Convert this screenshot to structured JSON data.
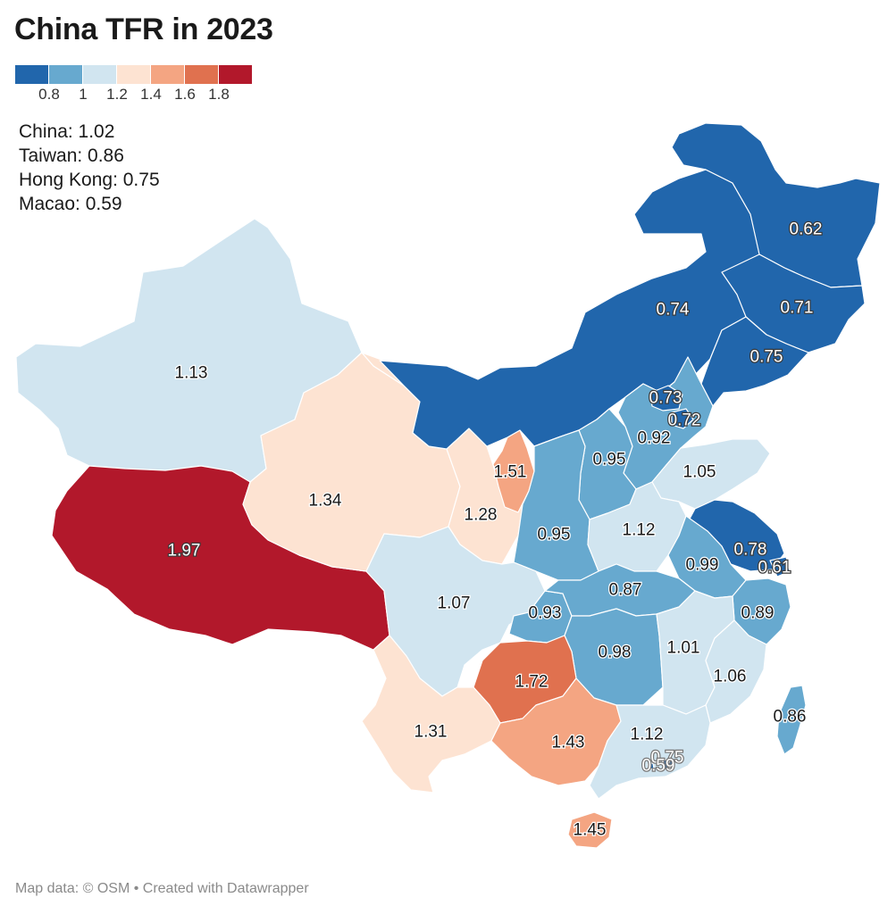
{
  "title": "China TFR in 2023",
  "legend": {
    "colors": [
      "#2166ac",
      "#67a9cf",
      "#d1e5f0",
      "#fde3d2",
      "#f4a582",
      "#e0714f",
      "#b2182b"
    ],
    "ticks": [
      "0.8",
      "1",
      "1.2",
      "1.4",
      "1.6",
      "1.8"
    ]
  },
  "stats": {
    "china": "China: 1.02",
    "taiwan": "Taiwan: 0.86",
    "hongkong": "Hong Kong: 0.75",
    "macao": "Macao: 0.59"
  },
  "regions": {
    "xinjiang": {
      "value": 1.13,
      "label": "1.13"
    },
    "tibet": {
      "value": 1.97,
      "label": "1.97"
    },
    "qinghai": {
      "value": 1.34,
      "label": "1.34"
    },
    "gansu": {
      "value": 1.28,
      "label": "1.28"
    },
    "ningxia": {
      "value": 1.51,
      "label": "1.51"
    },
    "inner_mongolia": {
      "value": 0.74,
      "label": "0.74"
    },
    "heilongjiang": {
      "value": 0.62,
      "label": "0.62"
    },
    "jilin": {
      "value": 0.71,
      "label": "0.71"
    },
    "liaoning": {
      "value": 0.75,
      "label": "0.75"
    },
    "hebei": {
      "value": 0.92,
      "label": "0.92"
    },
    "beijing": {
      "value": 0.73,
      "label": "0.73"
    },
    "tianjin": {
      "value": 0.72,
      "label": "0.72"
    },
    "shanxi": {
      "value": 0.95,
      "label": "0.95"
    },
    "shandong": {
      "value": 1.05,
      "label": "1.05"
    },
    "shaanxi": {
      "value": 0.95,
      "label": "0.95"
    },
    "henan": {
      "value": 1.12,
      "label": "1.12"
    },
    "jiangsu": {
      "value": 0.78,
      "label": "0.78"
    },
    "shanghai": {
      "value": 0.61,
      "label": "0.61"
    },
    "anhui": {
      "value": 0.99,
      "label": "0.99"
    },
    "sichuan": {
      "value": 1.07,
      "label": "1.07"
    },
    "chongqing": {
      "value": 0.93,
      "label": "0.93"
    },
    "hubei": {
      "value": 0.87,
      "label": "0.87"
    },
    "zhejiang": {
      "value": 0.89,
      "label": "0.89"
    },
    "hunan": {
      "value": 0.98,
      "label": "0.98"
    },
    "jiangxi": {
      "value": 1.01,
      "label": "1.01"
    },
    "fujian": {
      "value": 1.06,
      "label": "1.06"
    },
    "guizhou": {
      "value": 1.72,
      "label": "1.72"
    },
    "yunnan": {
      "value": 1.31,
      "label": "1.31"
    },
    "guangxi": {
      "value": 1.43,
      "label": "1.43"
    },
    "guangdong": {
      "value": 1.12,
      "label": "1.12"
    },
    "hainan": {
      "value": 1.45,
      "label": "1.45"
    },
    "taiwan": {
      "value": 0.86,
      "label": "0.86"
    },
    "hongkong": {
      "value": 0.75,
      "label": "0.75"
    },
    "macao": {
      "value": 0.59,
      "label": "0.59"
    }
  },
  "footer": "Map data: © OSM  • Created with Datawrapper"
}
